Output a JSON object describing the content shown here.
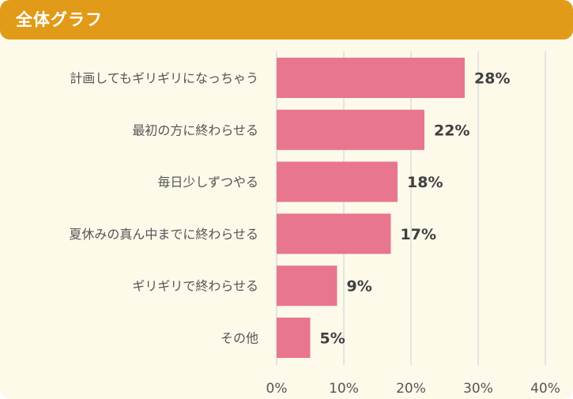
{
  "header": {
    "title": "全体グラフ"
  },
  "colors": {
    "header_bg": "#e19b19",
    "bar": "#e8768e",
    "grid": "#dcdcdc",
    "panel_bg": "#fdfaea"
  },
  "chart_data": {
    "type": "bar",
    "orientation": "horizontal",
    "title": "全体グラフ",
    "categories": [
      "計画してもギリギリになっちゃう",
      "最初の方に終わらせる",
      "毎日少しずつやる",
      "夏休みの真ん中までに終わらせる",
      "ギリギリで終わらせる",
      "その他"
    ],
    "values": [
      28,
      22,
      18,
      17,
      9,
      5
    ],
    "value_labels": [
      "28%",
      "22%",
      "18%",
      "17%",
      "9%",
      "5%"
    ],
    "xlim": [
      0,
      40
    ],
    "x_ticks": [
      0,
      10,
      20,
      30,
      40
    ],
    "x_tick_labels": [
      "0%",
      "10%",
      "20%",
      "30%",
      "40%"
    ],
    "grid": true
  }
}
